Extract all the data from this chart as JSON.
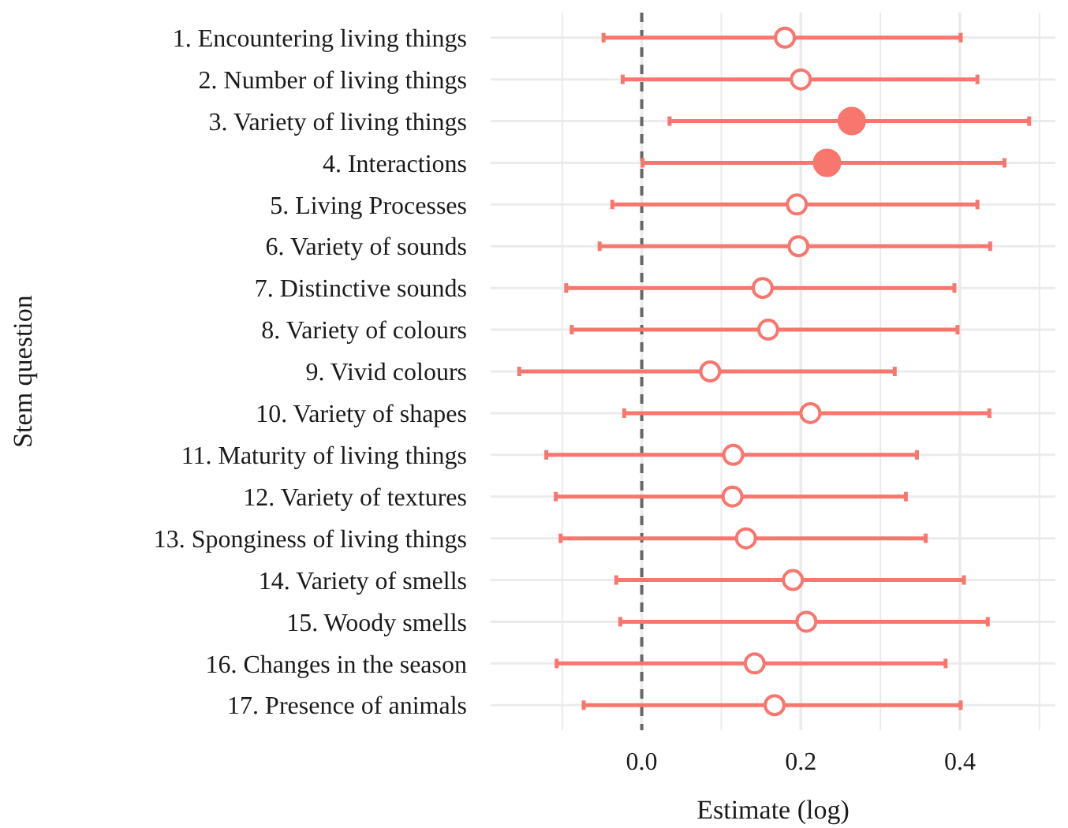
{
  "chart_data": {
    "type": "scatter",
    "orientation": "horizontal",
    "xlabel": "Estimate (log)",
    "ylabel": "Stem question",
    "categories": [
      "1. Encountering living things",
      "2. Number of living things",
      "3. Variety of living things",
      "4. Interactions",
      "5. Living Processes",
      "6. Variety of sounds",
      "7. Distinctive sounds",
      "8. Variety of colours",
      "9. Vivid colours",
      "10. Variety of shapes",
      "11. Maturity of living things",
      "12. Variety of textures",
      "13. Sponginess of living things",
      "14. Variety of smells",
      "15. Woody smells",
      "16. Changes in the season",
      "17. Presence of animals"
    ],
    "series": [
      {
        "color": "#f8766d",
        "values": [
          0.18,
          0.2,
          null,
          null,
          0.195,
          0.197,
          0.152,
          0.159,
          0.086,
          0.212,
          0.115,
          0.114,
          0.131,
          0.19,
          0.207,
          0.142,
          0.167
        ],
        "errors": [
          [
            -0.048,
            0.401
          ],
          [
            -0.024,
            0.422
          ],
          null,
          null,
          [
            -0.037,
            0.422
          ],
          [
            -0.053,
            0.438
          ],
          [
            -0.095,
            0.393
          ],
          [
            -0.088,
            0.397
          ],
          [
            -0.154,
            0.318
          ],
          [
            -0.022,
            0.437
          ],
          [
            -0.12,
            0.346
          ],
          [
            -0.108,
            0.332
          ],
          [
            -0.102,
            0.357
          ],
          [
            -0.032,
            0.405
          ],
          [
            -0.027,
            0.435
          ],
          [
            -0.107,
            0.382
          ],
          [
            -0.073,
            0.401
          ]
        ]
      },
      {
        "color": "#f8766d",
        "values": [
          null,
          null,
          0.264,
          0.233,
          null,
          null,
          null,
          null,
          null,
          null,
          null,
          null,
          null,
          null,
          null,
          null,
          null
        ],
        "errors": [
          null,
          null,
          [
            0.035,
            0.487
          ],
          [
            0.001,
            0.456
          ],
          null,
          null,
          null,
          null,
          null,
          null,
          null,
          null,
          null,
          null,
          null,
          null,
          null
        ]
      }
    ],
    "xlim": [
      -0.19,
      0.52
    ],
    "xticks": [
      {
        "value": -0.1,
        "label": null
      },
      {
        "value": 0,
        "label": "0.0"
      },
      {
        "value": 0.1,
        "label": null
      },
      {
        "value": 0.2,
        "label": "0.2"
      },
      {
        "value": 0.3,
        "label": null
      },
      {
        "value": 0.4,
        "label": "0.4"
      },
      {
        "value": 0.5,
        "label": null
      }
    ],
    "ref_lines": [
      {
        "axis": "x",
        "value": 0,
        "color": "#666666",
        "line_style": "dashed"
      }
    ],
    "grid": true,
    "marker": "circle"
  }
}
